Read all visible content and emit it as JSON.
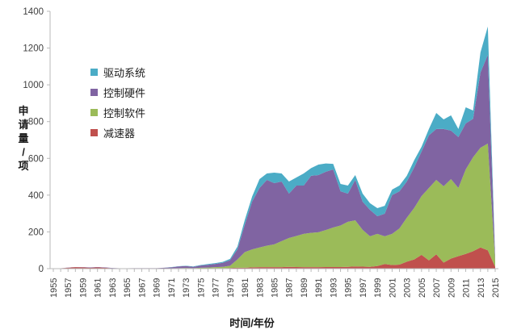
{
  "chart_data": {
    "type": "area",
    "stacked": true,
    "title": "",
    "xlabel": "时间/年份",
    "ylabel": "申请量/项",
    "ylim": [
      0,
      1400
    ],
    "ytick_step": 200,
    "x_label_every": 2,
    "grid": false,
    "legend_position": "inside-upper-left",
    "axis_color": "#b9b9b9",
    "label_color": "#3f3f3f",
    "x": [
      1955,
      1956,
      1957,
      1958,
      1959,
      1960,
      1961,
      1962,
      1963,
      1964,
      1965,
      1966,
      1967,
      1968,
      1969,
      1970,
      1971,
      1972,
      1973,
      1974,
      1975,
      1976,
      1977,
      1978,
      1979,
      1980,
      1981,
      1982,
      1983,
      1984,
      1985,
      1986,
      1987,
      1988,
      1989,
      1990,
      1991,
      1992,
      1993,
      1994,
      1995,
      1996,
      1997,
      1998,
      1999,
      2000,
      2001,
      2002,
      2003,
      2004,
      2005,
      2006,
      2007,
      2008,
      2009,
      2010,
      2011,
      2012,
      2013,
      2014,
      2015
    ],
    "series": [
      {
        "id": "reducer",
        "name": "减速器",
        "color": "#C0504D",
        "values": [
          1,
          2,
          5,
          8,
          7,
          5,
          7,
          5,
          2,
          1,
          1,
          1,
          1,
          1,
          1,
          1,
          1,
          2,
          2,
          1,
          2,
          2,
          3,
          3,
          4,
          5,
          5,
          7,
          8,
          8,
          8,
          8,
          10,
          9,
          8,
          8,
          8,
          9,
          9,
          9,
          10,
          12,
          11,
          10,
          14,
          25,
          20,
          22,
          38,
          50,
          75,
          45,
          78,
          33,
          55,
          68,
          80,
          95,
          115,
          100,
          10
        ]
      },
      {
        "id": "control-software",
        "name": "控制软件",
        "color": "#9BBB59",
        "values": [
          0,
          0,
          0,
          0,
          0,
          0,
          0,
          0,
          0,
          0,
          0,
          0,
          0,
          0,
          0,
          1,
          1,
          1,
          2,
          2,
          3,
          4,
          5,
          7,
          12,
          45,
          85,
          98,
          107,
          117,
          124,
          142,
          157,
          169,
          181,
          187,
          190,
          201,
          215,
          226,
          245,
          251,
          200,
          166,
          175,
          151,
          169,
          197,
          239,
          280,
          320,
          394,
          405,
          415,
          432,
          371,
          460,
          511,
          543,
          580,
          30
        ]
      },
      {
        "id": "control-hardware",
        "name": "控制硬件",
        "color": "#8064A2",
        "values": [
          0,
          0,
          1,
          1,
          1,
          2,
          2,
          2,
          2,
          1,
          1,
          2,
          2,
          2,
          2,
          3,
          5,
          9,
          10,
          7,
          12,
          15,
          18,
          22,
          30,
          55,
          150,
          260,
          324,
          358,
          333,
          324,
          241,
          274,
          263,
          310,
          311,
          317,
          316,
          186,
          153,
          220,
          153,
          144,
          96,
          123,
          211,
          202,
          197,
          220,
          242,
          286,
          277,
          312,
          264,
          277,
          250,
          209,
          409,
          483,
          15
        ]
      },
      {
        "id": "drive-system",
        "name": "驱动系统",
        "color": "#4BACC6",
        "values": [
          0,
          0,
          0,
          0,
          0,
          0,
          0,
          0,
          0,
          0,
          0,
          0,
          0,
          0,
          0,
          0,
          1,
          1,
          2,
          2,
          3,
          4,
          4,
          5,
          7,
          15,
          25,
          28,
          48,
          35,
          57,
          44,
          66,
          44,
          66,
          42,
          57,
          45,
          30,
          40,
          44,
          26,
          44,
          36,
          44,
          43,
          30,
          31,
          31,
          40,
          26,
          35,
          87,
          52,
          83,
          44,
          88,
          45,
          109,
          154,
          5
        ]
      }
    ],
    "legend_order": [
      "drive-system",
      "control-hardware",
      "control-software",
      "reducer"
    ]
  }
}
